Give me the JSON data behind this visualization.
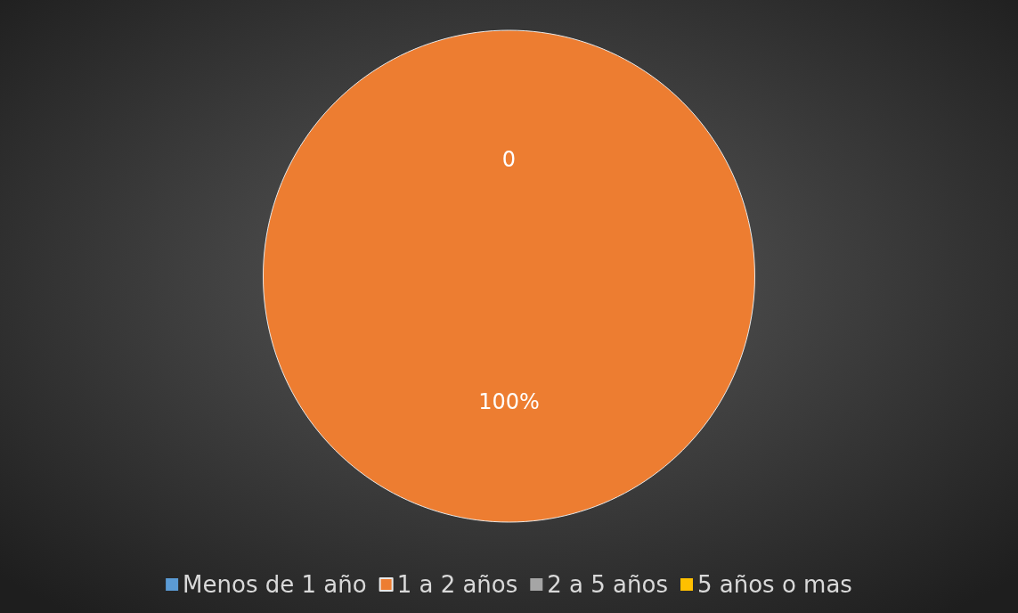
{
  "chart_data": {
    "type": "pie",
    "title": "0",
    "categories": [
      "Menos de 1 año",
      "1 a 2 años",
      "2 a 5 años",
      "5 años o mas"
    ],
    "values": [
      0,
      100,
      0,
      0
    ],
    "colors": [
      "#5b9bd5",
      "#ed7d31",
      "#a5a5a5",
      "#ffc000"
    ],
    "value_labels": [
      null,
      "100%",
      null,
      null
    ],
    "legend": "bottom"
  }
}
